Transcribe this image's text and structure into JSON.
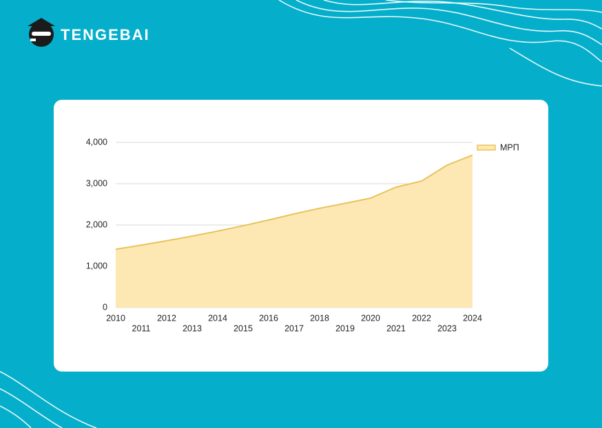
{
  "brand": "TENGEBAI",
  "chart_data": {
    "type": "area",
    "categories": [
      "2010",
      "2011",
      "2012",
      "2013",
      "2014",
      "2015",
      "2016",
      "2017",
      "2018",
      "2019",
      "2020",
      "2021",
      "2022",
      "2023",
      "2024"
    ],
    "series": [
      {
        "name": "МРП",
        "color": "#e8c25a",
        "fill": "#fde8b4",
        "values": [
          1413,
          1512,
          1618,
          1731,
          1852,
          1982,
          2121,
          2269,
          2405,
          2525,
          2651,
          2917,
          3063,
          3450,
          3692
        ]
      }
    ],
    "ylim": [
      0,
      4000
    ],
    "yticks": [
      0,
      {
        "value": 1000,
        "label": "1,000"
      },
      {
        "value": 2000,
        "label": "2,000"
      },
      {
        "value": 3000,
        "label": "3,000"
      },
      {
        "value": 4000,
        "label": "4,000"
      }
    ],
    "grid": true,
    "legend": "right"
  }
}
